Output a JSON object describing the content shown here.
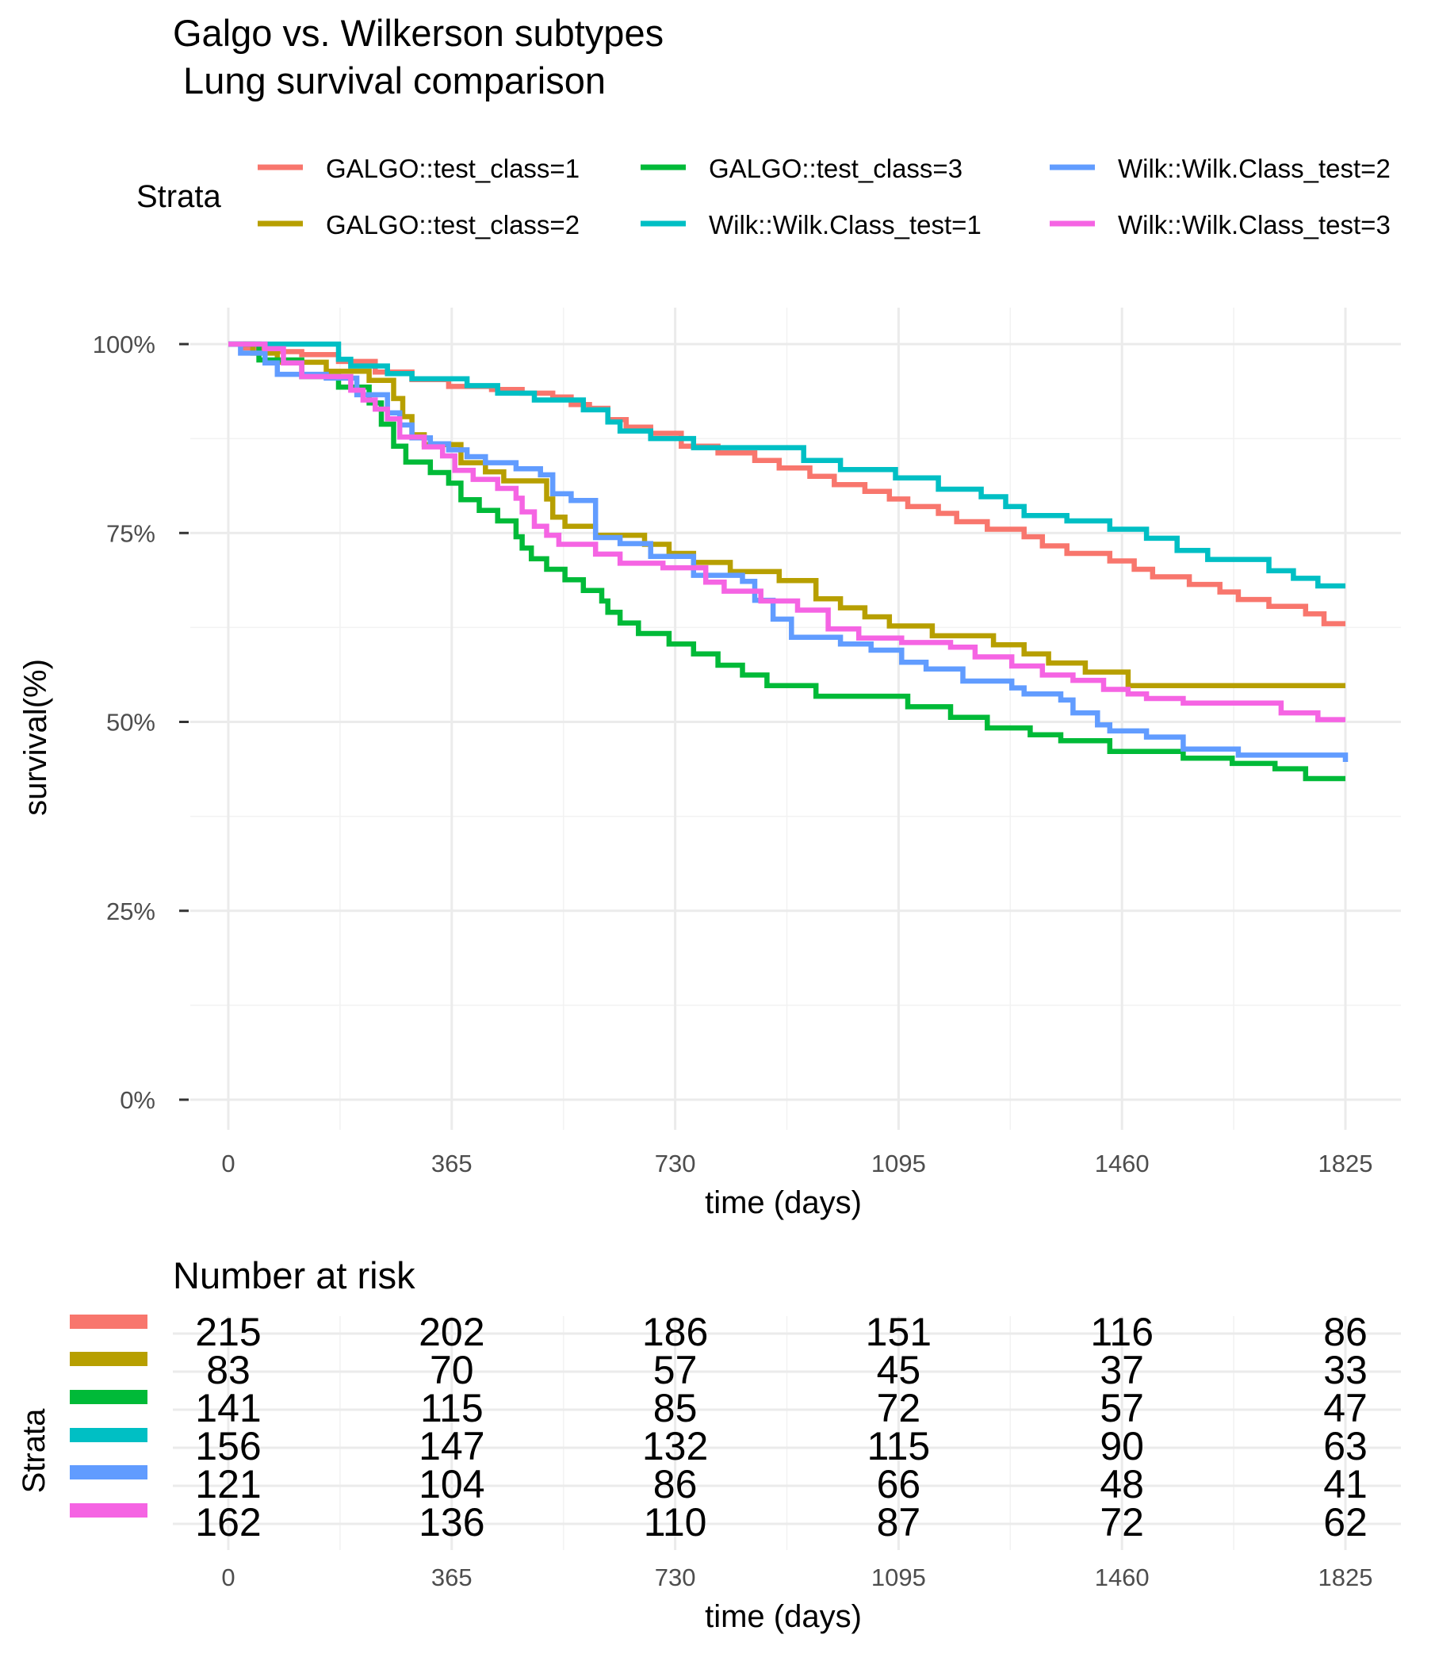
{
  "title_line1": "Galgo vs. Wilkerson subtypes",
  "title_line2": " Lung survival comparison",
  "legend": {
    "title": "Strata",
    "items": [
      {
        "label": "GALGO::test_class=1",
        "color": "#F8766D"
      },
      {
        "label": "GALGO::test_class=2",
        "color": "#B79F00"
      },
      {
        "label": "GALGO::test_class=3",
        "color": "#00BA38"
      },
      {
        "label": "Wilk::Wilk.Class_test=1",
        "color": "#00BFC4"
      },
      {
        "label": "Wilk::Wilk.Class_test=2",
        "color": "#619CFF"
      },
      {
        "label": "Wilk::Wilk.Class_test=3",
        "color": "#F564E3"
      }
    ]
  },
  "chart_data": {
    "type": "line",
    "step": true,
    "xlabel": "time (days)",
    "ylabel": "survival(%)",
    "xlim": [
      0,
      1825
    ],
    "ylim": [
      0,
      100
    ],
    "x_ticks": [
      0,
      365,
      730,
      1095,
      1460,
      1825
    ],
    "y_ticks": [
      0,
      25,
      50,
      75,
      100
    ],
    "y_tick_labels": [
      "0%",
      "25%",
      "50%",
      "75%",
      "100%"
    ],
    "grid": true,
    "legend_position": "top",
    "series": [
      {
        "name": "GALGO::test_class=1",
        "color": "#F8766D",
        "points": [
          [
            0,
            100
          ],
          [
            25,
            99.5
          ],
          [
            60,
            99
          ],
          [
            120,
            98.6
          ],
          [
            180,
            97.7
          ],
          [
            240,
            96.3
          ],
          [
            300,
            95.3
          ],
          [
            360,
            94.4
          ],
          [
            430,
            94
          ],
          [
            480,
            93.5
          ],
          [
            530,
            93
          ],
          [
            560,
            92
          ],
          [
            590,
            91.5
          ],
          [
            620,
            90
          ],
          [
            650,
            89
          ],
          [
            690,
            88.2
          ],
          [
            740,
            86.5
          ],
          [
            800,
            85.6
          ],
          [
            860,
            84.6
          ],
          [
            900,
            83.6
          ],
          [
            950,
            82.5
          ],
          [
            990,
            81.4
          ],
          [
            1040,
            80.5
          ],
          [
            1080,
            79.5
          ],
          [
            1110,
            78.5
          ],
          [
            1160,
            77.6
          ],
          [
            1190,
            76.5
          ],
          [
            1240,
            75.5
          ],
          [
            1300,
            74.5
          ],
          [
            1330,
            73.3
          ],
          [
            1370,
            72.3
          ],
          [
            1440,
            71.3
          ],
          [
            1480,
            70.2
          ],
          [
            1510,
            69.2
          ],
          [
            1570,
            68.2
          ],
          [
            1620,
            67.2
          ],
          [
            1650,
            66.2
          ],
          [
            1700,
            65.3
          ],
          [
            1760,
            64.3
          ],
          [
            1790,
            63
          ],
          [
            1825,
            63
          ]
        ]
      },
      {
        "name": "GALGO::test_class=2",
        "color": "#B79F00",
        "points": [
          [
            0,
            100
          ],
          [
            40,
            98.8
          ],
          [
            80,
            97.6
          ],
          [
            160,
            96.4
          ],
          [
            230,
            95.2
          ],
          [
            270,
            92.8
          ],
          [
            285,
            90.4
          ],
          [
            300,
            88
          ],
          [
            320,
            86.7
          ],
          [
            380,
            84.3
          ],
          [
            420,
            83.1
          ],
          [
            450,
            81.9
          ],
          [
            520,
            79.5
          ],
          [
            530,
            77.1
          ],
          [
            550,
            75.9
          ],
          [
            600,
            74.7
          ],
          [
            680,
            73.5
          ],
          [
            720,
            72.3
          ],
          [
            760,
            71.1
          ],
          [
            820,
            69.9
          ],
          [
            900,
            68.7
          ],
          [
            960,
            66.3
          ],
          [
            1000,
            65.1
          ],
          [
            1040,
            63.9
          ],
          [
            1080,
            62.7
          ],
          [
            1150,
            61.4
          ],
          [
            1250,
            60.2
          ],
          [
            1300,
            59
          ],
          [
            1340,
            57.8
          ],
          [
            1400,
            56.6
          ],
          [
            1470,
            54.8
          ],
          [
            1825,
            54.8
          ]
        ]
      },
      {
        "name": "GALGO::test_class=3",
        "color": "#00BA38",
        "points": [
          [
            0,
            100
          ],
          [
            50,
            97.9
          ],
          [
            120,
            95.7
          ],
          [
            180,
            94.3
          ],
          [
            230,
            92.2
          ],
          [
            250,
            89.4
          ],
          [
            270,
            86.5
          ],
          [
            290,
            84.4
          ],
          [
            330,
            83
          ],
          [
            360,
            81.6
          ],
          [
            380,
            79.4
          ],
          [
            410,
            78
          ],
          [
            440,
            76.6
          ],
          [
            470,
            74.5
          ],
          [
            480,
            73
          ],
          [
            495,
            71.6
          ],
          [
            520,
            70.2
          ],
          [
            550,
            68.8
          ],
          [
            580,
            67.4
          ],
          [
            610,
            66
          ],
          [
            620,
            64.5
          ],
          [
            640,
            63.1
          ],
          [
            670,
            61.7
          ],
          [
            720,
            60.3
          ],
          [
            760,
            59
          ],
          [
            800,
            57.5
          ],
          [
            840,
            56.2
          ],
          [
            880,
            54.8
          ],
          [
            960,
            53.4
          ],
          [
            1110,
            52
          ],
          [
            1180,
            50.6
          ],
          [
            1240,
            49.2
          ],
          [
            1310,
            48.3
          ],
          [
            1360,
            47.5
          ],
          [
            1440,
            46.1
          ],
          [
            1560,
            45.2
          ],
          [
            1640,
            44.5
          ],
          [
            1710,
            43.8
          ],
          [
            1760,
            42.5
          ],
          [
            1825,
            42.5
          ]
        ]
      },
      {
        "name": "Wilk::Wilk.Class_test=1",
        "color": "#00BFC4",
        "points": [
          [
            0,
            100
          ],
          [
            180,
            98
          ],
          [
            200,
            97.1
          ],
          [
            260,
            96.1
          ],
          [
            300,
            95.4
          ],
          [
            390,
            94.5
          ],
          [
            440,
            93.5
          ],
          [
            500,
            92.6
          ],
          [
            580,
            91.3
          ],
          [
            620,
            89.7
          ],
          [
            640,
            88.5
          ],
          [
            690,
            87.5
          ],
          [
            760,
            86.3
          ],
          [
            940,
            84.6
          ],
          [
            1000,
            83.4
          ],
          [
            1090,
            82.3
          ],
          [
            1160,
            80.8
          ],
          [
            1230,
            79.8
          ],
          [
            1270,
            78.5
          ],
          [
            1300,
            77.3
          ],
          [
            1370,
            76.6
          ],
          [
            1440,
            75.5
          ],
          [
            1500,
            74.3
          ],
          [
            1550,
            72.7
          ],
          [
            1600,
            71.5
          ],
          [
            1700,
            70
          ],
          [
            1740,
            69
          ],
          [
            1780,
            68
          ],
          [
            1825,
            68
          ]
        ]
      },
      {
        "name": "Wilk::Wilk.Class_test=2",
        "color": "#619CFF",
        "points": [
          [
            0,
            100
          ],
          [
            20,
            98.8
          ],
          [
            60,
            97.5
          ],
          [
            80,
            96
          ],
          [
            160,
            95.5
          ],
          [
            210,
            93.3
          ],
          [
            260,
            90.9
          ],
          [
            280,
            89.3
          ],
          [
            300,
            87.6
          ],
          [
            330,
            86.8
          ],
          [
            360,
            86
          ],
          [
            390,
            85.1
          ],
          [
            420,
            84.3
          ],
          [
            470,
            83.5
          ],
          [
            510,
            82.7
          ],
          [
            530,
            80.2
          ],
          [
            560,
            79.3
          ],
          [
            600,
            74.4
          ],
          [
            640,
            73.6
          ],
          [
            690,
            71.9
          ],
          [
            760,
            69.4
          ],
          [
            840,
            68.6
          ],
          [
            860,
            66.1
          ],
          [
            890,
            63.6
          ],
          [
            920,
            61.2
          ],
          [
            1000,
            60.3
          ],
          [
            1050,
            59.5
          ],
          [
            1100,
            57.9
          ],
          [
            1140,
            57
          ],
          [
            1200,
            55.4
          ],
          [
            1280,
            54.5
          ],
          [
            1300,
            53.7
          ],
          [
            1360,
            52.9
          ],
          [
            1380,
            51.2
          ],
          [
            1420,
            49.6
          ],
          [
            1440,
            48.8
          ],
          [
            1500,
            48
          ],
          [
            1560,
            46.4
          ],
          [
            1650,
            45.6
          ],
          [
            1825,
            44.7
          ]
        ]
      },
      {
        "name": "Wilk::Wilk.Class_test=3",
        "color": "#F564E3",
        "points": [
          [
            0,
            100
          ],
          [
            10,
            100
          ],
          [
            60,
            99.4
          ],
          [
            90,
            97.5
          ],
          [
            120,
            95.7
          ],
          [
            200,
            93.9
          ],
          [
            220,
            92.6
          ],
          [
            240,
            91.4
          ],
          [
            260,
            90.1
          ],
          [
            280,
            87.7
          ],
          [
            320,
            86.4
          ],
          [
            350,
            85.2
          ],
          [
            370,
            83.3
          ],
          [
            400,
            82.1
          ],
          [
            440,
            80.9
          ],
          [
            470,
            79.6
          ],
          [
            480,
            77.8
          ],
          [
            500,
            75.9
          ],
          [
            520,
            74.7
          ],
          [
            540,
            73.5
          ],
          [
            600,
            72.2
          ],
          [
            640,
            71
          ],
          [
            710,
            70.4
          ],
          [
            780,
            68.5
          ],
          [
            810,
            67.3
          ],
          [
            870,
            66
          ],
          [
            930,
            64.8
          ],
          [
            980,
            62.3
          ],
          [
            1030,
            61.1
          ],
          [
            1100,
            60.5
          ],
          [
            1180,
            59.9
          ],
          [
            1220,
            58.6
          ],
          [
            1280,
            57.4
          ],
          [
            1330,
            56.2
          ],
          [
            1380,
            55.5
          ],
          [
            1430,
            54.3
          ],
          [
            1470,
            53.7
          ],
          [
            1500,
            53.1
          ],
          [
            1560,
            52.5
          ],
          [
            1720,
            51.2
          ],
          [
            1780,
            50.3
          ],
          [
            1825,
            50.3
          ]
        ]
      }
    ]
  },
  "risk_table": {
    "title": "Number at risk",
    "ylabel": "Strata",
    "xlabel": "time (days)",
    "times": [
      0,
      365,
      730,
      1095,
      1460,
      1825
    ],
    "rows": [
      {
        "color": "#F8766D",
        "values": [
          215,
          202,
          186,
          151,
          116,
          86
        ]
      },
      {
        "color": "#B79F00",
        "values": [
          83,
          70,
          57,
          45,
          37,
          33
        ]
      },
      {
        "color": "#00BA38",
        "values": [
          141,
          115,
          85,
          72,
          57,
          47
        ]
      },
      {
        "color": "#00BFC4",
        "values": [
          156,
          147,
          132,
          115,
          90,
          63
        ]
      },
      {
        "color": "#619CFF",
        "values": [
          121,
          104,
          86,
          66,
          48,
          41
        ]
      },
      {
        "color": "#F564E3",
        "values": [
          162,
          136,
          110,
          87,
          72,
          62
        ]
      }
    ]
  }
}
